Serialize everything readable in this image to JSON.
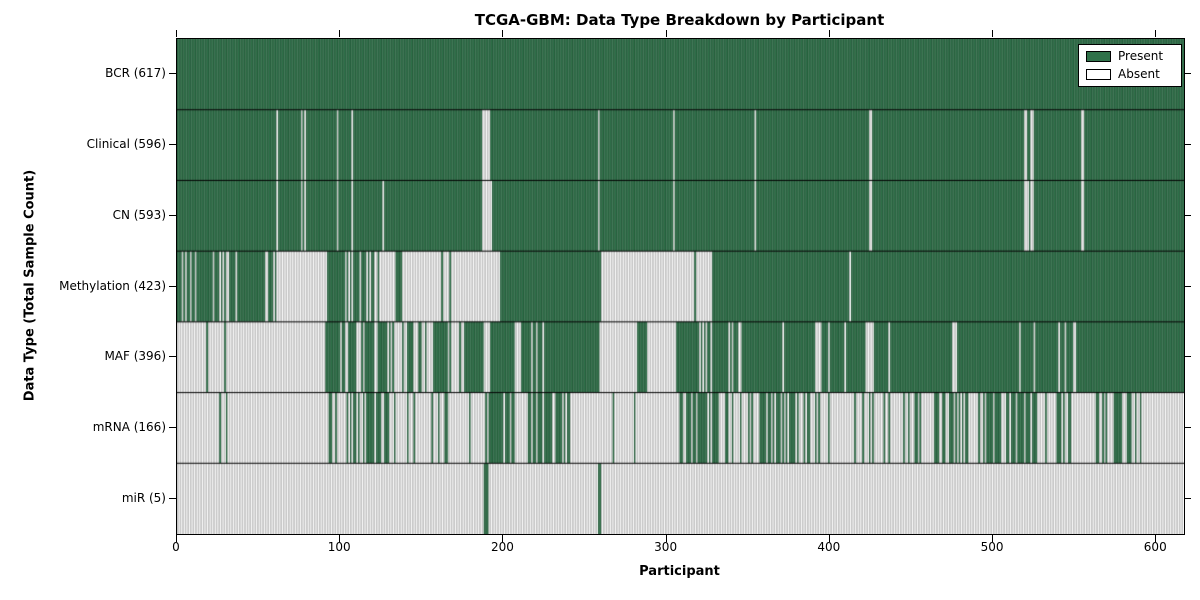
{
  "chart_data": {
    "type": "heatmap",
    "title": "TCGA-GBM: Data Type Breakdown by Participant",
    "xlabel": "Participant",
    "ylabel": "Data Type (Total Sample Count)",
    "x_ticks": [
      0,
      100,
      200,
      300,
      400,
      500,
      600
    ],
    "x_range": [
      0,
      617
    ],
    "n_participants": 617,
    "grid": false,
    "legend_position": "upper right",
    "legend": [
      {
        "label": "Present",
        "color": "#2f7149"
      },
      {
        "label": "Absent",
        "color": "#ffffff"
      }
    ],
    "colors": {
      "present_fill": "#2f7149",
      "present_edge": "#1d4c30",
      "absent_fill": "#ffffff",
      "absent_edge": "#8f8f8f",
      "frame": "#000000"
    },
    "value_encoding": "segments are [start_participant, end_participant, value]; value 1 = present, 0 = absent, fraction = approximate share present in that span",
    "rows": [
      {
        "label": "BCR (617)",
        "data_type": "BCR",
        "total_sample_count": 617,
        "segments": [
          [
            0,
            617,
            1
          ]
        ]
      },
      {
        "label": "Clinical (596)",
        "data_type": "Clinical",
        "total_sample_count": 596,
        "segments": [
          [
            0,
            61,
            1
          ],
          [
            61,
            62,
            0
          ],
          [
            62,
            76,
            1
          ],
          [
            76,
            77,
            0
          ],
          [
            77,
            78,
            1
          ],
          [
            78,
            79,
            0
          ],
          [
            79,
            98,
            1
          ],
          [
            98,
            99,
            0
          ],
          [
            99,
            107,
            1
          ],
          [
            107,
            108,
            0
          ],
          [
            108,
            187,
            1
          ],
          [
            187,
            192,
            0
          ],
          [
            192,
            258,
            1
          ],
          [
            258,
            259,
            0
          ],
          [
            259,
            304,
            1
          ],
          [
            304,
            305,
            0
          ],
          [
            305,
            354,
            1
          ],
          [
            354,
            355,
            0
          ],
          [
            355,
            424,
            1
          ],
          [
            424,
            426,
            0
          ],
          [
            426,
            519,
            1
          ],
          [
            519,
            521,
            0
          ],
          [
            521,
            523,
            1
          ],
          [
            523,
            525,
            0
          ],
          [
            525,
            554,
            1
          ],
          [
            554,
            556,
            0
          ],
          [
            556,
            617,
            1
          ]
        ]
      },
      {
        "label": "CN (593)",
        "data_type": "CN",
        "total_sample_count": 593,
        "segments": [
          [
            0,
            61,
            1
          ],
          [
            61,
            62,
            0
          ],
          [
            62,
            76,
            1
          ],
          [
            76,
            77,
            0
          ],
          [
            77,
            78,
            1
          ],
          [
            78,
            79,
            0
          ],
          [
            79,
            98,
            1
          ],
          [
            98,
            99,
            0
          ],
          [
            99,
            107,
            1
          ],
          [
            107,
            108,
            0
          ],
          [
            108,
            126,
            1
          ],
          [
            126,
            127,
            0
          ],
          [
            127,
            187,
            1
          ],
          [
            187,
            193,
            0
          ],
          [
            193,
            258,
            1
          ],
          [
            258,
            259,
            0
          ],
          [
            259,
            304,
            1
          ],
          [
            304,
            305,
            0
          ],
          [
            305,
            354,
            1
          ],
          [
            354,
            355,
            0
          ],
          [
            355,
            424,
            1
          ],
          [
            424,
            426,
            0
          ],
          [
            426,
            519,
            1
          ],
          [
            519,
            522,
            0
          ],
          [
            522,
            523,
            1
          ],
          [
            523,
            525,
            0
          ],
          [
            525,
            554,
            1
          ],
          [
            554,
            556,
            0
          ],
          [
            556,
            617,
            1
          ]
        ]
      },
      {
        "label": "Methylation (423)",
        "data_type": "Methylation",
        "total_sample_count": 423,
        "segments": [
          [
            0,
            61,
            0.7
          ],
          [
            61,
            92,
            0
          ],
          [
            92,
            99,
            1
          ],
          [
            99,
            126,
            0.55
          ],
          [
            126,
            134,
            0
          ],
          [
            134,
            138,
            1
          ],
          [
            138,
            162,
            0
          ],
          [
            162,
            163,
            1
          ],
          [
            163,
            167,
            0
          ],
          [
            167,
            168,
            1
          ],
          [
            168,
            198,
            0
          ],
          [
            198,
            260,
            1
          ],
          [
            260,
            317,
            0
          ],
          [
            317,
            318,
            1
          ],
          [
            318,
            328,
            0
          ],
          [
            328,
            412,
            1
          ],
          [
            412,
            413,
            0
          ],
          [
            413,
            617,
            1
          ]
        ]
      },
      {
        "label": "MAF (396)",
        "data_type": "MAF",
        "total_sample_count": 396,
        "segments": [
          [
            0,
            18,
            0
          ],
          [
            18,
            19,
            1
          ],
          [
            19,
            29,
            0
          ],
          [
            29,
            30,
            1
          ],
          [
            30,
            91,
            0
          ],
          [
            91,
            130,
            0.72
          ],
          [
            130,
            158,
            0.45
          ],
          [
            158,
            166,
            1
          ],
          [
            166,
            176,
            0.3
          ],
          [
            176,
            188,
            1
          ],
          [
            188,
            192,
            0
          ],
          [
            192,
            207,
            1
          ],
          [
            207,
            211,
            0
          ],
          [
            211,
            260,
            0.88
          ],
          [
            260,
            282,
            0
          ],
          [
            282,
            288,
            1
          ],
          [
            288,
            306,
            0
          ],
          [
            306,
            320,
            1
          ],
          [
            320,
            328,
            0.35
          ],
          [
            328,
            338,
            1
          ],
          [
            338,
            346,
            0.3
          ],
          [
            346,
            371,
            1
          ],
          [
            371,
            372,
            0
          ],
          [
            372,
            391,
            1
          ],
          [
            391,
            395,
            0
          ],
          [
            395,
            399,
            1
          ],
          [
            399,
            400,
            0
          ],
          [
            400,
            409,
            1
          ],
          [
            409,
            410,
            0
          ],
          [
            410,
            422,
            1
          ],
          [
            422,
            427,
            0
          ],
          [
            427,
            436,
            1
          ],
          [
            436,
            437,
            0
          ],
          [
            437,
            475,
            1
          ],
          [
            475,
            478,
            0
          ],
          [
            478,
            516,
            1
          ],
          [
            516,
            517,
            0
          ],
          [
            517,
            525,
            1
          ],
          [
            525,
            526,
            0
          ],
          [
            526,
            540,
            1
          ],
          [
            540,
            541,
            0
          ],
          [
            541,
            544,
            1
          ],
          [
            544,
            545,
            0
          ],
          [
            545,
            549,
            1
          ],
          [
            549,
            551,
            0
          ],
          [
            551,
            617,
            1
          ]
        ]
      },
      {
        "label": "mRNA (166)",
        "data_type": "mRNA",
        "total_sample_count": 166,
        "segments": [
          [
            0,
            26,
            0
          ],
          [
            26,
            27,
            1
          ],
          [
            27,
            30,
            0
          ],
          [
            30,
            31,
            1
          ],
          [
            31,
            91,
            0
          ],
          [
            91,
            122,
            0.35
          ],
          [
            122,
            130,
            0.5
          ],
          [
            130,
            160,
            0.15
          ],
          [
            160,
            166,
            0.5
          ],
          [
            166,
            189,
            0.1
          ],
          [
            189,
            206,
            0.75
          ],
          [
            206,
            215,
            0.2
          ],
          [
            215,
            233,
            0.7
          ],
          [
            233,
            241,
            0.5
          ],
          [
            241,
            280,
            0.05
          ],
          [
            280,
            281,
            1
          ],
          [
            281,
            308,
            0
          ],
          [
            308,
            332,
            0.5
          ],
          [
            332,
            355,
            0.15
          ],
          [
            355,
            385,
            0.6
          ],
          [
            385,
            427,
            0.25
          ],
          [
            427,
            462,
            0.2
          ],
          [
            462,
            486,
            0.5
          ],
          [
            486,
            501,
            0.25
          ],
          [
            501,
            529,
            0.6
          ],
          [
            529,
            561,
            0.3
          ],
          [
            561,
            584,
            0.5
          ],
          [
            584,
            593,
            0.3
          ],
          [
            593,
            617,
            0
          ]
        ]
      },
      {
        "label": "miR (5)",
        "data_type": "miR",
        "total_sample_count": 5,
        "segments": [
          [
            0,
            188,
            0
          ],
          [
            188,
            191,
            1
          ],
          [
            191,
            258,
            0
          ],
          [
            258,
            260,
            1
          ],
          [
            260,
            617,
            0
          ]
        ]
      }
    ]
  }
}
